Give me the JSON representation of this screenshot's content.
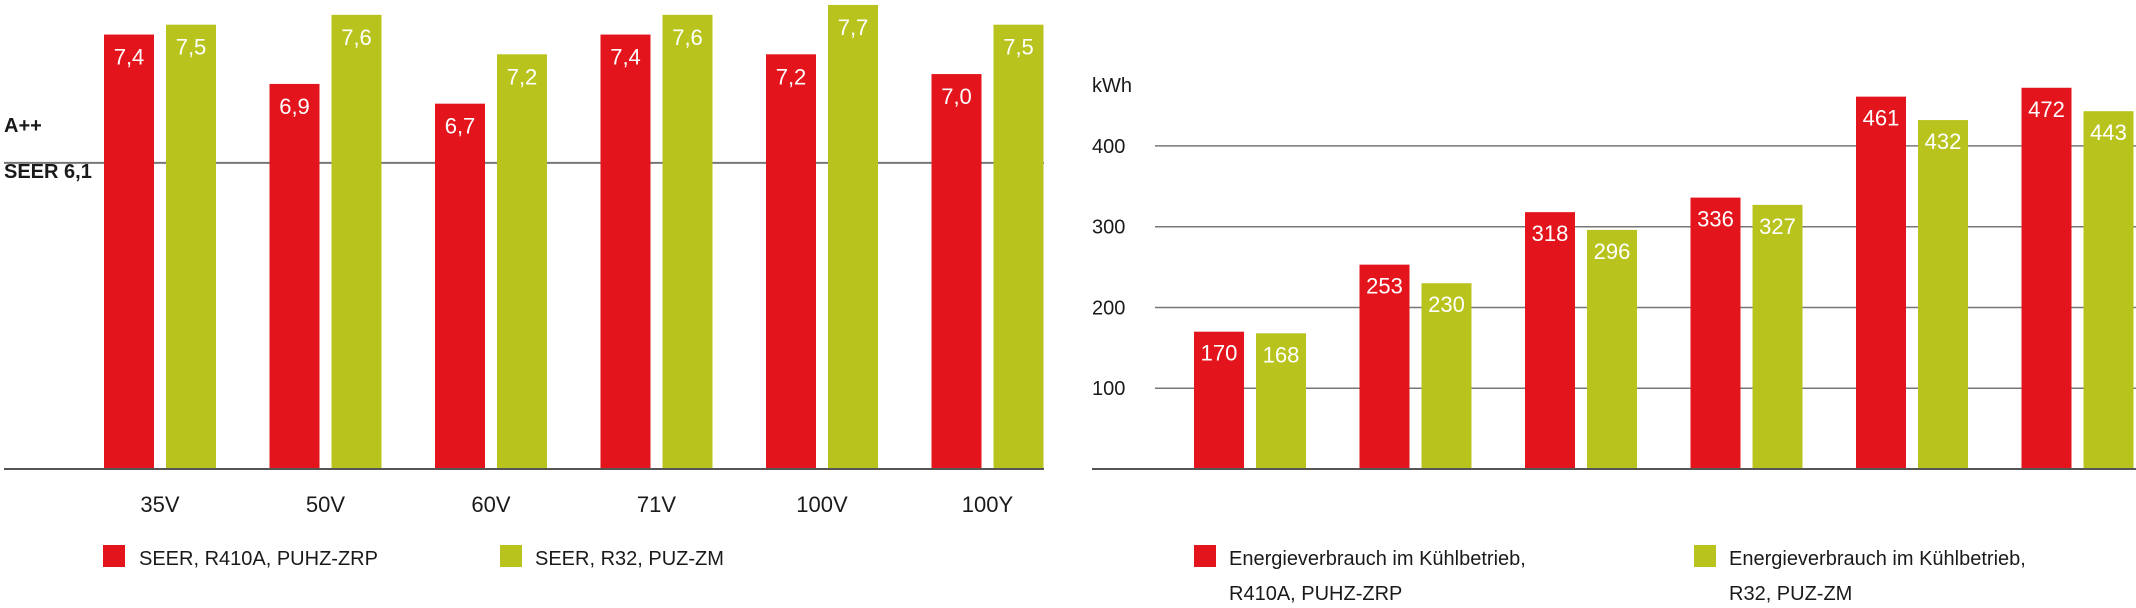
{
  "colors": {
    "red": "#e3141b",
    "green": "#b8c41d",
    "axis": "#555555",
    "grid": "#777777"
  },
  "chart_data": [
    {
      "type": "bar",
      "categories": [
        "35V",
        "50V",
        "60V",
        "71V",
        "100V",
        "100Y"
      ],
      "series": [
        {
          "name": "SEER, R410A, PUHZ-ZRP",
          "color": "#e3141b",
          "values": [
            7.4,
            6.9,
            6.7,
            7.4,
            7.2,
            7.0
          ],
          "labels": [
            "7,4",
            "6,9",
            "6,7",
            "7,4",
            "7,2",
            "7,0"
          ]
        },
        {
          "name": "SEER, R32, PUZ-ZM",
          "color": "#b8c41d",
          "values": [
            7.5,
            7.6,
            7.2,
            7.6,
            7.7,
            7.5
          ],
          "labels": [
            "7,5",
            "7,6",
            "7,2",
            "7,6",
            "7,7",
            "7,5"
          ]
        }
      ],
      "reference_line": {
        "value": 6.1,
        "label_top": "A++",
        "label_bottom": "SEER 6,1"
      },
      "ylim": [
        3.0,
        7.75
      ],
      "grid": false,
      "legend_position": "bottom"
    },
    {
      "type": "bar",
      "categories": [
        "",
        "",
        "",
        "",
        "",
        ""
      ],
      "series": [
        {
          "name_line1": "Energieverbrauch im Kühlbetrieb,",
          "name_line2": "R410A, PUHZ-ZRP",
          "color": "#e3141b",
          "values": [
            170,
            253,
            318,
            336,
            461,
            472
          ]
        },
        {
          "name_line1": "Energieverbrauch im Kühlbetrieb,",
          "name_line2": "R32, PUZ-ZM",
          "color": "#b8c41d",
          "values": [
            168,
            230,
            296,
            327,
            432,
            443
          ]
        }
      ],
      "ylabel": "kWh",
      "yticks": [
        100,
        200,
        300,
        400
      ],
      "ylim": [
        0,
        480
      ],
      "grid": true,
      "legend_position": "bottom"
    }
  ]
}
